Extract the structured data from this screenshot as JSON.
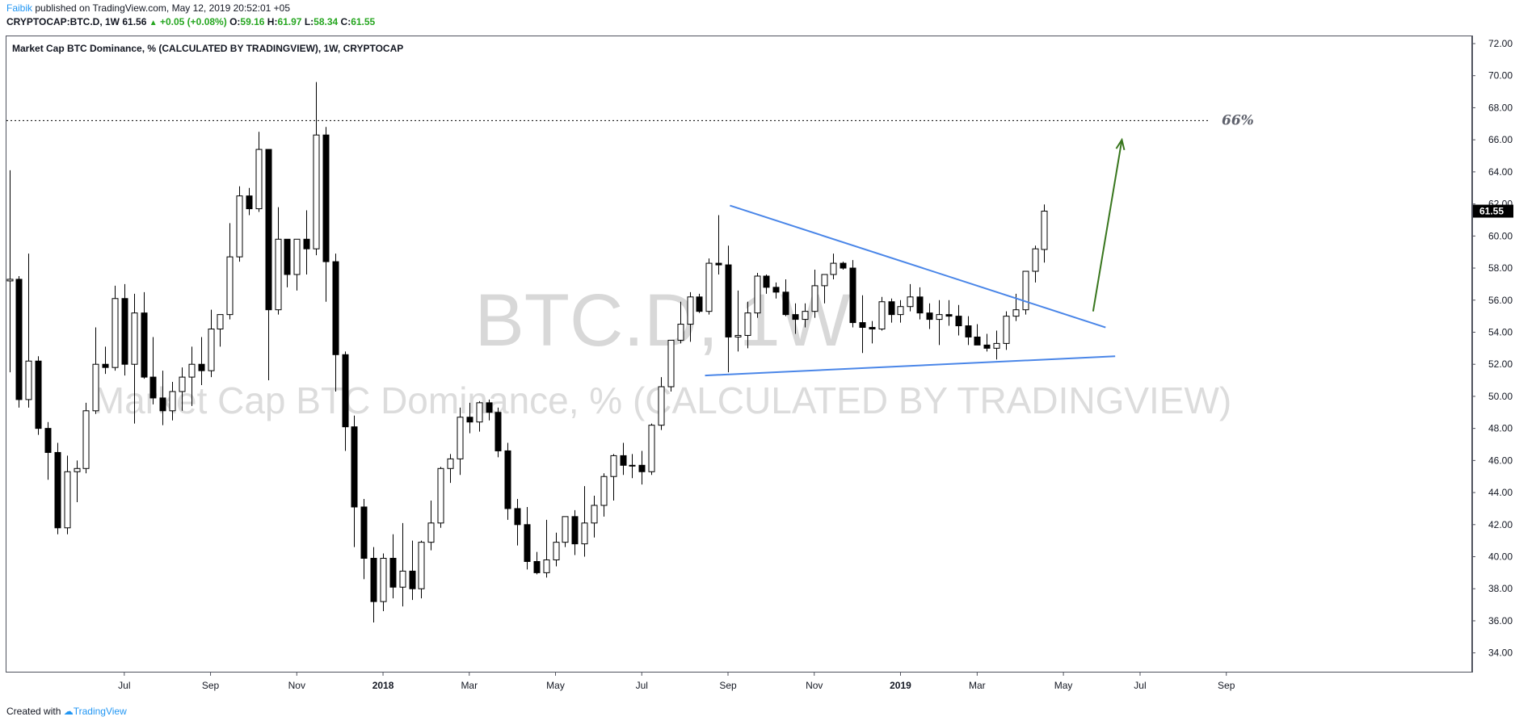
{
  "header": {
    "author": "Faibik",
    "published": " published on TradingView.com, May 12, 2019 20:52:01 +05",
    "symbol": "CRYPTOCAP:BTC.D, 1W",
    "last": "61.56",
    "change_arrow": "▲",
    "change": "+0.05 (+0.08%)",
    "o_label": "O:",
    "o_value": "59.16",
    "h_label": "H:",
    "h_value": "61.97",
    "l_label": "L:",
    "l_value": "58.34",
    "c_label": "C:",
    "c_value": "61.55"
  },
  "chart_title": "Market Cap BTC Dominance, % (CALCULATED BY TRADINGVIEW), 1W, CRYPTOCAP",
  "watermark": {
    "symbol": "BTC.D, 1W",
    "description": "Market Cap BTC Dominance, % (CALCULATED BY TRADINGVIEW)"
  },
  "footer": {
    "created_with": "Created with",
    "brand": "TradingView"
  },
  "colors": {
    "up": "#ffffff",
    "down": "#000000",
    "wick": "#000000",
    "trendline": "#4a86e8",
    "arrow": "#38761d",
    "price_label_bg": "#000000"
  },
  "chart_data": {
    "type": "candlestick",
    "ylim": [
      32.7,
      73.0
    ],
    "yticks": [
      "34.00",
      "36.00",
      "38.00",
      "40.00",
      "42.00",
      "44.00",
      "46.00",
      "48.00",
      "50.00",
      "52.00",
      "54.00",
      "56.00",
      "58.00",
      "60.00",
      "62.00",
      "64.00",
      "66.00",
      "68.00",
      "70.00",
      "72.00"
    ],
    "xticks": [
      {
        "label": "Jul",
        "week": 12,
        "bold": false
      },
      {
        "label": "Sep",
        "week": 21,
        "bold": false
      },
      {
        "label": "Nov",
        "week": 30,
        "bold": false
      },
      {
        "label": "2018",
        "week": 39,
        "bold": true
      },
      {
        "label": "Mar",
        "week": 48,
        "bold": false
      },
      {
        "label": "May",
        "week": 57,
        "bold": false
      },
      {
        "label": "Jul",
        "week": 66,
        "bold": false
      },
      {
        "label": "Sep",
        "week": 75,
        "bold": false
      },
      {
        "label": "Nov",
        "week": 84,
        "bold": false
      },
      {
        "label": "2019",
        "week": 93,
        "bold": true
      },
      {
        "label": "Mar",
        "week": 101,
        "bold": false
      },
      {
        "label": "May",
        "week": 110,
        "bold": false
      },
      {
        "label": "Jul",
        "week": 118,
        "bold": false
      },
      {
        "label": "Sep",
        "week": 127,
        "bold": false
      }
    ],
    "ohlc": [
      [
        57.2,
        64.1,
        51.5,
        57.3
      ],
      [
        57.3,
        57.5,
        49.3,
        49.8
      ],
      [
        49.8,
        58.9,
        49.3,
        52.2
      ],
      [
        52.2,
        52.5,
        47.6,
        48.0
      ],
      [
        48.0,
        48.4,
        44.8,
        46.5
      ],
      [
        46.5,
        47.1,
        41.4,
        41.8
      ],
      [
        41.8,
        46.3,
        41.4,
        45.3
      ],
      [
        45.3,
        46.0,
        43.4,
        45.5
      ],
      [
        45.5,
        49.6,
        45.2,
        49.1
      ],
      [
        49.1,
        54.3,
        48.9,
        52.0
      ],
      [
        52.0,
        53.1,
        51.4,
        51.8
      ],
      [
        51.8,
        56.9,
        51.6,
        56.1
      ],
      [
        56.1,
        57.0,
        51.3,
        52.0
      ],
      [
        52.0,
        56.4,
        48.3,
        55.2
      ],
      [
        55.2,
        56.5,
        51.1,
        51.2
      ],
      [
        51.2,
        53.7,
        49.5,
        49.9
      ],
      [
        49.9,
        51.6,
        48.2,
        49.1
      ],
      [
        49.1,
        50.9,
        48.5,
        50.3
      ],
      [
        50.3,
        51.8,
        49.1,
        51.2
      ],
      [
        51.2,
        53.1,
        49.4,
        52.0
      ],
      [
        52.0,
        53.7,
        50.7,
        51.6
      ],
      [
        51.6,
        55.4,
        51.2,
        54.2
      ],
      [
        54.2,
        54.7,
        53.1,
        55.1
      ],
      [
        55.1,
        60.8,
        54.8,
        58.7
      ],
      [
        58.7,
        63.1,
        58.4,
        62.5
      ],
      [
        62.5,
        63.0,
        61.3,
        61.7
      ],
      [
        61.7,
        66.5,
        61.5,
        65.4
      ],
      [
        65.4,
        65.4,
        51.0,
        55.4
      ],
      [
        55.4,
        61.8,
        55.1,
        59.8
      ],
      [
        59.8,
        59.8,
        56.8,
        57.6
      ],
      [
        57.6,
        59.4,
        56.6,
        59.8
      ],
      [
        59.8,
        61.6,
        57.6,
        59.2
      ],
      [
        59.2,
        69.6,
        58.8,
        66.3
      ],
      [
        66.3,
        66.8,
        55.9,
        58.4
      ],
      [
        58.4,
        58.9,
        50.3,
        52.6
      ],
      [
        52.6,
        52.8,
        46.6,
        48.1
      ],
      [
        48.1,
        48.8,
        40.6,
        43.1
      ],
      [
        43.1,
        43.6,
        38.6,
        39.9
      ],
      [
        39.9,
        40.6,
        35.9,
        37.2
      ],
      [
        37.2,
        40.2,
        36.6,
        39.9
      ],
      [
        39.9,
        41.4,
        37.4,
        38.1
      ],
      [
        38.1,
        42.1,
        36.9,
        39.1
      ],
      [
        39.1,
        41.0,
        37.3,
        38.0
      ],
      [
        38.0,
        41.0,
        37.4,
        40.9
      ],
      [
        40.9,
        43.5,
        40.4,
        42.1
      ],
      [
        42.1,
        45.6,
        41.8,
        45.5
      ],
      [
        45.5,
        46.4,
        44.6,
        46.1
      ],
      [
        46.1,
        49.3,
        45.1,
        48.7
      ],
      [
        48.7,
        49.6,
        47.7,
        48.4
      ],
      [
        48.4,
        49.7,
        47.8,
        49.6
      ],
      [
        49.6,
        49.8,
        48.5,
        49.0
      ],
      [
        49.0,
        49.3,
        46.2,
        46.6
      ],
      [
        46.6,
        47.1,
        42.3,
        43.0
      ],
      [
        43.0,
        43.6,
        40.7,
        42.0
      ],
      [
        42.0,
        43.1,
        39.2,
        39.7
      ],
      [
        39.7,
        40.3,
        38.9,
        39.0
      ],
      [
        39.0,
        42.3,
        38.7,
        39.8
      ],
      [
        39.8,
        41.5,
        39.4,
        40.9
      ],
      [
        40.9,
        42.5,
        40.6,
        42.5
      ],
      [
        42.5,
        42.9,
        40.1,
        40.8
      ],
      [
        40.8,
        44.4,
        40.0,
        42.1
      ],
      [
        42.1,
        43.8,
        41.2,
        43.2
      ],
      [
        43.2,
        45.2,
        42.5,
        45.0
      ],
      [
        45.0,
        46.4,
        43.5,
        46.3
      ],
      [
        46.3,
        47.1,
        45.1,
        45.7
      ],
      [
        45.7,
        46.4,
        44.9,
        45.7
      ],
      [
        45.7,
        46.6,
        44.5,
        45.3
      ],
      [
        45.3,
        48.3,
        45.1,
        48.2
      ],
      [
        48.2,
        51.2,
        47.9,
        50.6
      ],
      [
        50.6,
        53.5,
        50.3,
        53.5
      ],
      [
        53.5,
        55.9,
        53.3,
        54.5
      ],
      [
        54.5,
        56.5,
        53.4,
        56.2
      ],
      [
        56.2,
        56.4,
        55.2,
        55.3
      ],
      [
        55.3,
        58.6,
        55.1,
        58.3
      ],
      [
        58.3,
        61.3,
        57.6,
        58.2
      ],
      [
        58.2,
        59.4,
        51.5,
        53.7
      ],
      [
        53.7,
        56.6,
        52.8,
        53.8
      ],
      [
        53.8,
        55.9,
        53.0,
        55.2
      ],
      [
        55.2,
        57.7,
        54.9,
        57.5
      ],
      [
        57.5,
        57.6,
        56.4,
        56.8
      ],
      [
        56.8,
        57.1,
        56.1,
        56.5
      ],
      [
        56.5,
        57.3,
        55.0,
        55.1
      ],
      [
        55.1,
        55.8,
        53.9,
        54.8
      ],
      [
        54.8,
        55.8,
        54.3,
        55.3
      ],
      [
        55.3,
        57.9,
        54.9,
        56.9
      ],
      [
        56.9,
        57.6,
        55.8,
        57.6
      ],
      [
        57.6,
        58.9,
        57.3,
        58.3
      ],
      [
        58.3,
        58.4,
        57.9,
        58.0
      ],
      [
        58.0,
        58.5,
        54.3,
        54.6
      ],
      [
        54.6,
        56.3,
        52.7,
        54.3
      ],
      [
        54.3,
        54.7,
        53.3,
        54.2
      ],
      [
        54.2,
        56.2,
        54.1,
        55.9
      ],
      [
        55.9,
        56.1,
        54.6,
        55.1
      ],
      [
        55.1,
        56.0,
        54.6,
        55.6
      ],
      [
        55.6,
        57.0,
        55.3,
        56.2
      ],
      [
        56.2,
        56.8,
        54.8,
        55.2
      ],
      [
        55.2,
        55.8,
        54.2,
        54.8
      ],
      [
        54.8,
        56.0,
        53.2,
        55.1
      ],
      [
        55.1,
        56.0,
        54.4,
        55.0
      ],
      [
        55.0,
        55.7,
        53.8,
        54.4
      ],
      [
        54.4,
        55.0,
        53.2,
        53.7
      ],
      [
        53.7,
        54.5,
        53.2,
        53.2
      ],
      [
        53.2,
        53.9,
        52.8,
        53.0
      ],
      [
        53.0,
        54.1,
        52.3,
        53.3
      ],
      [
        53.3,
        55.3,
        52.9,
        55.0
      ],
      [
        55.0,
        56.4,
        54.7,
        55.4
      ],
      [
        55.4,
        57.8,
        55.1,
        57.8
      ],
      [
        57.8,
        59.4,
        57.1,
        59.2
      ],
      [
        59.16,
        61.97,
        58.34,
        61.55
      ]
    ],
    "annotations": {
      "resistance_level": 67.2,
      "target_label": "66%",
      "upper_trendline": [
        [
          75.2,
          61.9
        ],
        [
          114.4,
          54.3
        ]
      ],
      "lower_trendline": [
        [
          72.6,
          51.3
        ],
        [
          115.4,
          52.5
        ]
      ],
      "arrow": [
        [
          113.1,
          55.3
        ],
        [
          116.1,
          66.0
        ]
      ]
    },
    "last_price_label": "61.55"
  }
}
